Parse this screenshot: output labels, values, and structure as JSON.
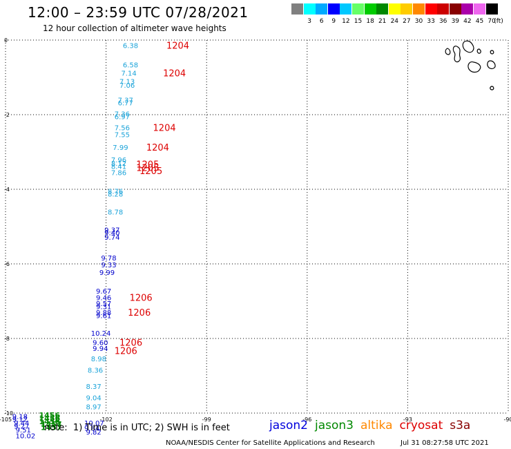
{
  "header": {
    "title": "12:00 – 23:59 UTC 07/28/2021",
    "subtitle": "12 hour collection of altimeter wave heights"
  },
  "scale": {
    "unit": "(ft)",
    "bins": [
      {
        "label": "",
        "color": "#808080"
      },
      {
        "label": "3",
        "color": "#00ffff"
      },
      {
        "label": "6",
        "color": "#00aaff"
      },
      {
        "label": "9",
        "color": "#0000ff"
      },
      {
        "label": "12",
        "color": "#00c8ff"
      },
      {
        "label": "15",
        "color": "#66ff66"
      },
      {
        "label": "18",
        "color": "#00cc00"
      },
      {
        "label": "21",
        "color": "#008800"
      },
      {
        "label": "24",
        "color": "#ffff00"
      },
      {
        "label": "27",
        "color": "#ffcc00"
      },
      {
        "label": "30",
        "color": "#ff8800"
      },
      {
        "label": "33",
        "color": "#ff0000"
      },
      {
        "label": "36",
        "color": "#cc0000"
      },
      {
        "label": "39",
        "color": "#880000"
      },
      {
        "label": "42",
        "color": "#aa00aa"
      },
      {
        "label": "45",
        "color": "#ee66ee"
      },
      {
        "label": "70",
        "color": "#000000"
      }
    ]
  },
  "map": {
    "lon_range": [
      -105,
      -90
    ],
    "lat_range": [
      -10,
      0
    ],
    "lon_ticks": [
      -105,
      -102,
      -99,
      -96,
      -93,
      -90
    ],
    "lat_ticks": [
      0,
      -2,
      -4,
      -6,
      -8,
      -10
    ],
    "lon_tick_labels": [
      "-105",
      "-102",
      "-99",
      "-96",
      "-93",
      "-90"
    ],
    "lat_tick_labels": [
      "0",
      "-2",
      "-4",
      "-6",
      "-8",
      "-10"
    ],
    "colors": {
      "cyan": "#1aa3d9",
      "blue": "#0000cc",
      "green": "#008800",
      "red": "#dd0000",
      "grid": "#000000"
    },
    "observations": [
      {
        "lon": -101.5,
        "lat": -0.14,
        "v": "6.38",
        "c": "cyan"
      },
      {
        "lon": -101.5,
        "lat": -0.66,
        "v": "6.58",
        "c": "cyan"
      },
      {
        "lon": -101.55,
        "lat": -0.88,
        "v": "7.14",
        "c": "cyan"
      },
      {
        "lon": -101.6,
        "lat": -1.1,
        "v": "7.13",
        "c": "cyan"
      },
      {
        "lon": -101.6,
        "lat": -1.2,
        "v": "7.06",
        "c": "cyan"
      },
      {
        "lon": -101.65,
        "lat": -1.6,
        "v": "7.37",
        "c": "cyan"
      },
      {
        "lon": -101.65,
        "lat": -1.68,
        "v": "6.77",
        "c": "cyan"
      },
      {
        "lon": -101.75,
        "lat": -1.97,
        "v": "7.36",
        "c": "cyan"
      },
      {
        "lon": -101.75,
        "lat": -2.05,
        "v": "6.97",
        "c": "cyan"
      },
      {
        "lon": -101.75,
        "lat": -2.34,
        "v": "7.56",
        "c": "cyan"
      },
      {
        "lon": -101.75,
        "lat": -2.53,
        "v": "7.55",
        "c": "cyan"
      },
      {
        "lon": -101.8,
        "lat": -2.87,
        "v": "7.99",
        "c": "cyan"
      },
      {
        "lon": -101.85,
        "lat": -3.2,
        "v": "7.96",
        "c": "cyan"
      },
      {
        "lon": -101.85,
        "lat": -3.3,
        "v": "8.12",
        "c": "cyan"
      },
      {
        "lon": -101.85,
        "lat": -3.38,
        "v": "8.41",
        "c": "cyan"
      },
      {
        "lon": -101.85,
        "lat": -3.55,
        "v": "7.86",
        "c": "cyan"
      },
      {
        "lon": -101.95,
        "lat": -4.05,
        "v": "8.76",
        "c": "cyan"
      },
      {
        "lon": -101.95,
        "lat": -4.12,
        "v": "8.28",
        "c": "cyan"
      },
      {
        "lon": -101.95,
        "lat": -4.6,
        "v": "8.78",
        "c": "cyan"
      },
      {
        "lon": -102.05,
        "lat": -5.08,
        "v": "9.37",
        "c": "blue"
      },
      {
        "lon": -102.05,
        "lat": -5.16,
        "v": "9.40",
        "c": "blue"
      },
      {
        "lon": -102.05,
        "lat": -5.28,
        "v": "9.74",
        "c": "blue"
      },
      {
        "lon": -102.15,
        "lat": -5.83,
        "v": "9.78",
        "c": "blue"
      },
      {
        "lon": -102.15,
        "lat": -6.02,
        "v": "9.33",
        "c": "blue"
      },
      {
        "lon": -102.2,
        "lat": -6.22,
        "v": "9.99",
        "c": "blue"
      },
      {
        "lon": -102.3,
        "lat": -6.72,
        "v": "9.67",
        "c": "blue"
      },
      {
        "lon": -102.3,
        "lat": -6.9,
        "v": "9.46",
        "c": "blue"
      },
      {
        "lon": -102.3,
        "lat": -7.06,
        "v": "9.57",
        "c": "blue"
      },
      {
        "lon": -102.3,
        "lat": -7.14,
        "v": "9.31",
        "c": "blue"
      },
      {
        "lon": -102.3,
        "lat": -7.3,
        "v": "9.88",
        "c": "blue"
      },
      {
        "lon": -102.3,
        "lat": -7.38,
        "v": "9.61",
        "c": "blue"
      },
      {
        "lon": -102.45,
        "lat": -7.85,
        "v": "10.24",
        "c": "blue"
      },
      {
        "lon": -102.4,
        "lat": -8.1,
        "v": "9.60",
        "c": "blue"
      },
      {
        "lon": -102.4,
        "lat": -8.26,
        "v": "9.94",
        "c": "blue"
      },
      {
        "lon": -102.45,
        "lat": -8.54,
        "v": "8.98",
        "c": "cyan"
      },
      {
        "lon": -102.55,
        "lat": -8.84,
        "v": "8.36",
        "c": "cyan"
      },
      {
        "lon": -102.6,
        "lat": -9.28,
        "v": "8.37",
        "c": "cyan"
      },
      {
        "lon": -102.6,
        "lat": -9.58,
        "v": "9.04",
        "c": "cyan"
      },
      {
        "lon": -102.6,
        "lat": -9.82,
        "v": "8.97",
        "c": "cyan"
      },
      {
        "lon": -102.65,
        "lat": -10.26,
        "v": "10.07",
        "c": "blue"
      },
      {
        "lon": -102.65,
        "lat": -10.4,
        "v": "9.84",
        "c": "blue"
      },
      {
        "lon": -102.6,
        "lat": -10.5,
        "v": "9.82",
        "c": "blue"
      },
      {
        "lon": -104.8,
        "lat": -10.08,
        "v": "9.18",
        "c": "blue"
      },
      {
        "lon": -104.8,
        "lat": -10.16,
        "v": "9.12",
        "c": "blue"
      },
      {
        "lon": -104.75,
        "lat": -10.26,
        "v": "9.44",
        "c": "blue"
      },
      {
        "lon": -104.75,
        "lat": -10.34,
        "v": "9.27",
        "c": "blue"
      },
      {
        "lon": -104.7,
        "lat": -10.44,
        "v": "9.51",
        "c": "blue"
      },
      {
        "lon": -104.7,
        "lat": -10.6,
        "v": "10.02",
        "c": "blue"
      }
    ],
    "green_labels": [
      {
        "lon": -104.0,
        "lat": -10.06,
        "v": "1456"
      },
      {
        "lon": -104.0,
        "lat": -10.14,
        "v": "1456"
      },
      {
        "lon": -104.0,
        "lat": -10.22,
        "v": "1456"
      },
      {
        "lon": -103.95,
        "lat": -10.3,
        "v": "1457"
      },
      {
        "lon": -103.95,
        "lat": -10.38,
        "v": "1457"
      }
    ],
    "time_labels": [
      {
        "lon": -100.2,
        "lat": -0.14,
        "v": "1204"
      },
      {
        "lon": -100.3,
        "lat": -0.88,
        "v": "1204"
      },
      {
        "lon": -100.6,
        "lat": -2.34,
        "v": "1204"
      },
      {
        "lon": -100.8,
        "lat": -2.87,
        "v": "1204"
      },
      {
        "lon": -101.1,
        "lat": -3.32,
        "v": "1205"
      },
      {
        "lon": -101.1,
        "lat": -3.42,
        "v": "1205"
      },
      {
        "lon": -101.0,
        "lat": -3.5,
        "v": "1205"
      },
      {
        "lon": -101.3,
        "lat": -6.9,
        "v": "1206"
      },
      {
        "lon": -101.35,
        "lat": -7.3,
        "v": "1206"
      },
      {
        "lon": -101.6,
        "lat": -8.1,
        "v": "1206"
      },
      {
        "lon": -101.75,
        "lat": -8.32,
        "v": "1206"
      }
    ]
  },
  "footer": {
    "note": "note:  1) Time is in UTC; 2) SWH is in feet",
    "legend": [
      {
        "label": "jason2",
        "color": "#0000dd"
      },
      {
        "label": "jason3",
        "color": "#008800"
      },
      {
        "label": "altika",
        "color": "#ff8800"
      },
      {
        "label": "cryosat",
        "color": "#dd0000"
      },
      {
        "label": "s3a",
        "color": "#880000"
      }
    ],
    "credit": "NOAA/NESDIS Center for Satellite Applications and Research",
    "generated": "Jul 31 08:27:58 UTC 2021"
  }
}
